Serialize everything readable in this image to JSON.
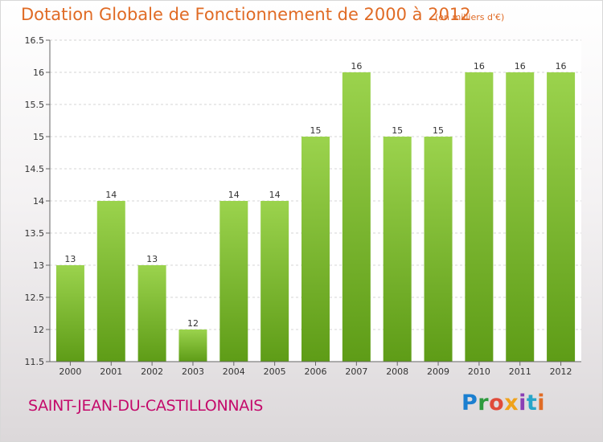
{
  "header": {
    "title": "Dotation Globale de Fonctionnement de 2000 à 2012",
    "unit": "(en milliers d'€)"
  },
  "footer": {
    "town": "SAINT-JEAN-DU-CASTILLONNAIS",
    "logo": "Proxiti",
    "logo_colors": [
      "#1b7fd0",
      "#2e9a3e",
      "#e04b3a",
      "#f0a21a",
      "#8a3fb5",
      "#27a5c9",
      "#e06b25"
    ]
  },
  "chart_data": {
    "type": "bar",
    "categories": [
      "2000",
      "2001",
      "2002",
      "2003",
      "2004",
      "2005",
      "2006",
      "2007",
      "2008",
      "2009",
      "2010",
      "2011",
      "2012"
    ],
    "values": [
      13,
      14,
      13,
      12,
      14,
      14,
      15,
      16,
      15,
      15,
      16,
      16,
      16
    ],
    "value_labels": [
      "13",
      "14",
      "13",
      "12",
      "14",
      "14",
      "15",
      "16",
      "15",
      "15",
      "16",
      "16",
      "16"
    ],
    "title": "Dotation Globale de Fonctionnement de 2000 à 2012",
    "xlabel": "",
    "ylabel": "",
    "ylim": [
      11.5,
      16.5
    ],
    "yticks": [
      11.5,
      12,
      12.5,
      13,
      13.5,
      14,
      14.5,
      15,
      15.5,
      16,
      16.5
    ],
    "ytick_labels": [
      "11.5",
      "12",
      "12.5",
      "13",
      "13.5",
      "14",
      "14.5",
      "15",
      "15.5",
      "16",
      "16.5"
    ],
    "grid": true,
    "bar_color_top": "#9bd34d",
    "bar_color_bottom": "#5e9c17"
  }
}
